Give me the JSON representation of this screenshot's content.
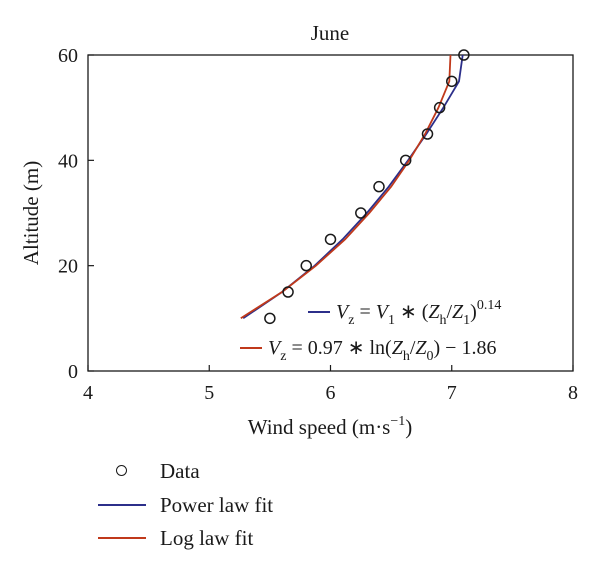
{
  "chart_data": {
    "type": "line",
    "title": "June",
    "xlabel": "Wind speed (m·s",
    "xlabel_sup": "−1",
    "xlabel_tail": ")",
    "ylabel": "Altitude (m)",
    "xlim": [
      4,
      8
    ],
    "ylim": [
      0,
      60
    ],
    "xticks": [
      "4",
      "5",
      "6",
      "7",
      "8"
    ],
    "yticks": [
      "0",
      "20",
      "40",
      "60"
    ],
    "grid": false,
    "series": [
      {
        "name": "Data",
        "kind": "scatter",
        "marker": "open-circle",
        "color": "#1a1a1a",
        "points": [
          {
            "x": 5.5,
            "y": 10
          },
          {
            "x": 5.65,
            "y": 15
          },
          {
            "x": 5.8,
            "y": 20
          },
          {
            "x": 6.0,
            "y": 25
          },
          {
            "x": 6.25,
            "y": 30
          },
          {
            "x": 6.4,
            "y": 35
          },
          {
            "x": 6.62,
            "y": 40
          },
          {
            "x": 6.8,
            "y": 45
          },
          {
            "x": 6.9,
            "y": 50
          },
          {
            "x": 7.0,
            "y": 55
          },
          {
            "x": 7.1,
            "y": 60
          }
        ]
      },
      {
        "name": "Power law fit",
        "kind": "line",
        "color": "#2c2f8a",
        "points": [
          {
            "x": 5.28,
            "y": 10
          },
          {
            "x": 5.6,
            "y": 15
          },
          {
            "x": 5.87,
            "y": 20
          },
          {
            "x": 6.1,
            "y": 25
          },
          {
            "x": 6.3,
            "y": 30
          },
          {
            "x": 6.48,
            "y": 35
          },
          {
            "x": 6.64,
            "y": 40
          },
          {
            "x": 6.79,
            "y": 45
          },
          {
            "x": 6.93,
            "y": 50
          },
          {
            "x": 7.06,
            "y": 55
          },
          {
            "x": 7.09,
            "y": 60
          }
        ]
      },
      {
        "name": "Log law fit",
        "kind": "line",
        "color": "#c0391b",
        "points": [
          {
            "x": 5.26,
            "y": 10
          },
          {
            "x": 5.6,
            "y": 15
          },
          {
            "x": 5.88,
            "y": 20
          },
          {
            "x": 6.12,
            "y": 25
          },
          {
            "x": 6.32,
            "y": 30
          },
          {
            "x": 6.5,
            "y": 35
          },
          {
            "x": 6.65,
            "y": 40
          },
          {
            "x": 6.78,
            "y": 45
          },
          {
            "x": 6.89,
            "y": 50
          },
          {
            "x": 6.98,
            "y": 55
          },
          {
            "x": 6.99,
            "y": 60
          }
        ]
      }
    ],
    "annotations": [
      {
        "id": "power",
        "color": "#2c2f8a",
        "parts": [
          "V",
          "z",
          " = ",
          "V",
          "1",
          " ∗ (",
          "Z",
          "h",
          "/",
          "Z",
          "1",
          ")",
          "0.14"
        ]
      },
      {
        "id": "log",
        "color": "#c0391b",
        "parts": [
          "V",
          "z",
          " = 0.97 ∗ ln(",
          "Z",
          "h",
          "/",
          "Z",
          "0",
          ") − 1.86"
        ]
      }
    ],
    "legend": {
      "placement": "below-plot",
      "entries": [
        {
          "label": "Data",
          "symbol": "open-circle",
          "color": "#1a1a1a"
        },
        {
          "label": "Power law fit",
          "symbol": "line",
          "color": "#2c2f8a"
        },
        {
          "label": "Log law fit",
          "symbol": "line",
          "color": "#c0391b"
        }
      ]
    }
  }
}
